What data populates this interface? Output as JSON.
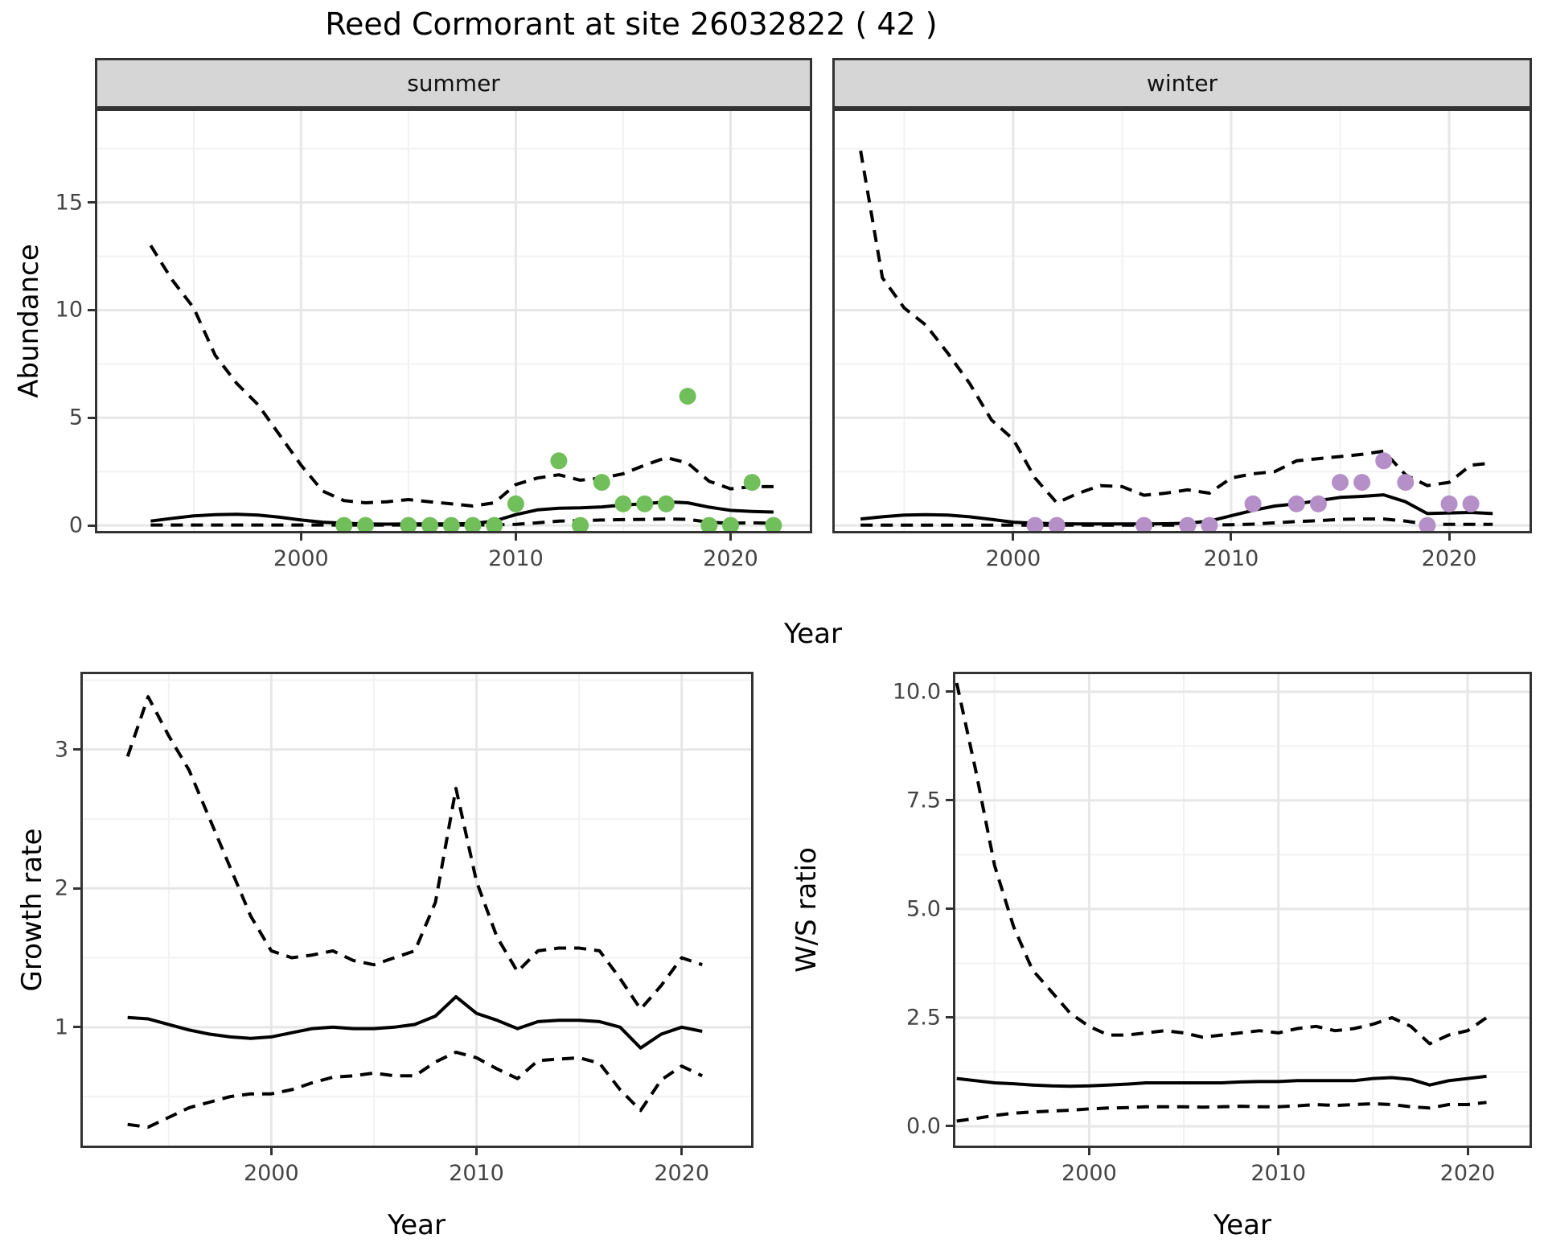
{
  "page_title": "Reed Cormorant at site 26032822 ( 42 )",
  "facets": [
    "summer",
    "winter"
  ],
  "axis_labels": {
    "top_y": "Abundance",
    "top_x": "Year",
    "bottom_left_y": "Growth rate",
    "bottom_left_x": "Year",
    "bottom_right_y": "W/S ratio",
    "bottom_right_x": "Year"
  },
  "colors": {
    "summer_points": "#71bf5b",
    "winter_points": "#b58fc7",
    "line": "#000000",
    "strip_bg": "#d6d6d6",
    "grid_major": "#e7e7e7",
    "grid_minor": "#f2f2f2",
    "panel_border": "#333333",
    "tick_text": "#444444"
  },
  "chart_data": [
    {
      "id": "abundance-summer",
      "type": "line",
      "facet": "summer",
      "xlabel": "Year",
      "ylabel": "Abundance",
      "xlim": [
        1990.4,
        2023.8
      ],
      "ylim": [
        -0.37,
        19.36
      ],
      "xticks": {
        "values": [
          2000,
          2010,
          2020
        ],
        "labels": [
          "2000",
          "2010",
          "2020"
        ]
      },
      "yticks": {
        "values": [
          0,
          5,
          10,
          15
        ],
        "labels": [
          "0",
          "5",
          "10",
          "15"
        ]
      },
      "x": [
        1993,
        1994,
        1995,
        1996,
        1997,
        1998,
        1999,
        2000,
        2001,
        2002,
        2003,
        2004,
        2005,
        2006,
        2007,
        2008,
        2009,
        2010,
        2011,
        2012,
        2013,
        2014,
        2015,
        2016,
        2017,
        2018,
        2019,
        2020,
        2021,
        2022
      ],
      "series": [
        {
          "name": "upper-ci",
          "style": "dashed",
          "values": [
            13.0,
            11.4,
            10.1,
            7.9,
            6.6,
            5.6,
            4.2,
            2.8,
            1.6,
            1.15,
            1.05,
            1.1,
            1.2,
            1.1,
            1.0,
            0.9,
            1.05,
            1.9,
            2.2,
            2.35,
            2.1,
            2.2,
            2.4,
            2.8,
            3.15,
            2.9,
            2.05,
            1.7,
            1.8,
            1.8
          ]
        },
        {
          "name": "fitted-median",
          "style": "solid",
          "values": [
            0.2,
            0.33,
            0.44,
            0.5,
            0.52,
            0.48,
            0.38,
            0.25,
            0.15,
            0.1,
            0.07,
            0.06,
            0.07,
            0.07,
            0.07,
            0.09,
            0.2,
            0.5,
            0.72,
            0.8,
            0.82,
            0.86,
            0.95,
            1.0,
            1.1,
            1.05,
            0.85,
            0.7,
            0.65,
            0.62
          ]
        },
        {
          "name": "lower-ci",
          "style": "dashed",
          "values": [
            0.02,
            0.02,
            0.02,
            0.02,
            0.02,
            0.02,
            0.02,
            0.02,
            0.02,
            0.02,
            0.02,
            0.02,
            0.02,
            0.02,
            0.02,
            0.02,
            0.03,
            0.05,
            0.12,
            0.2,
            0.22,
            0.25,
            0.27,
            0.28,
            0.3,
            0.28,
            0.15,
            0.1,
            0.12,
            0.1
          ]
        }
      ],
      "points": {
        "label": "observed-counts-summer",
        "color_key": "summer_points",
        "data": [
          [
            2002,
            0
          ],
          [
            2003,
            0
          ],
          [
            2005,
            0
          ],
          [
            2006,
            0
          ],
          [
            2007,
            0
          ],
          [
            2008,
            0
          ],
          [
            2009,
            0
          ],
          [
            2010,
            1
          ],
          [
            2012,
            3
          ],
          [
            2013,
            0
          ],
          [
            2014,
            2
          ],
          [
            2015,
            1
          ],
          [
            2016,
            1
          ],
          [
            2017,
            1
          ],
          [
            2018,
            6
          ],
          [
            2019,
            0
          ],
          [
            2020,
            0
          ],
          [
            2021,
            2
          ],
          [
            2022,
            0
          ]
        ]
      }
    },
    {
      "id": "abundance-winter",
      "type": "line",
      "facet": "winter",
      "xlabel": "Year",
      "ylabel": "Abundance",
      "xlim": [
        1991.7,
        2023.8
      ],
      "ylim": [
        -0.37,
        19.36
      ],
      "xticks": {
        "values": [
          2000,
          2010,
          2020
        ],
        "labels": [
          "2000",
          "2010",
          "2020"
        ]
      },
      "yticks": {
        "values": [
          0,
          5,
          10,
          15
        ],
        "labels": [
          "0",
          "5",
          "10",
          "15"
        ]
      },
      "x": [
        1993,
        1994,
        1995,
        1996,
        1997,
        1998,
        1999,
        2000,
        2001,
        2002,
        2003,
        2004,
        2005,
        2006,
        2007,
        2008,
        2009,
        2010,
        2011,
        2012,
        2013,
        2014,
        2015,
        2016,
        2017,
        2018,
        2019,
        2020,
        2021,
        2022
      ],
      "series": [
        {
          "name": "upper-ci",
          "style": "dashed",
          "values": [
            17.4,
            11.5,
            10.1,
            9.3,
            8.0,
            6.6,
            4.9,
            4.0,
            2.2,
            1.05,
            1.5,
            1.85,
            1.8,
            1.4,
            1.5,
            1.65,
            1.5,
            2.2,
            2.4,
            2.5,
            3.0,
            3.1,
            3.2,
            3.3,
            3.45,
            2.35,
            1.85,
            2.0,
            2.8,
            2.9
          ]
        },
        {
          "name": "fitted-median",
          "style": "solid",
          "values": [
            0.3,
            0.4,
            0.48,
            0.5,
            0.48,
            0.4,
            0.28,
            0.15,
            0.1,
            0.08,
            0.07,
            0.07,
            0.07,
            0.07,
            0.08,
            0.1,
            0.2,
            0.45,
            0.7,
            0.9,
            1.0,
            1.15,
            1.3,
            1.35,
            1.42,
            1.1,
            0.55,
            0.58,
            0.6,
            0.55
          ]
        },
        {
          "name": "lower-ci",
          "style": "dashed",
          "values": [
            0.01,
            0.01,
            0.01,
            0.01,
            0.01,
            0.01,
            0.01,
            0.01,
            0.01,
            0.01,
            0.01,
            0.01,
            0.01,
            0.01,
            0.01,
            0.01,
            0.02,
            0.03,
            0.06,
            0.12,
            0.18,
            0.22,
            0.28,
            0.3,
            0.3,
            0.2,
            0.05,
            0.05,
            0.05,
            0.05
          ]
        }
      ],
      "points": {
        "label": "observed-counts-winter",
        "color_key": "winter_points",
        "data": [
          [
            2001,
            0
          ],
          [
            2002,
            0
          ],
          [
            2006,
            0
          ],
          [
            2008,
            0
          ],
          [
            2009,
            0
          ],
          [
            2011,
            1
          ],
          [
            2013,
            1
          ],
          [
            2014,
            1
          ],
          [
            2015,
            2
          ],
          [
            2016,
            2
          ],
          [
            2017,
            3
          ],
          [
            2018,
            2
          ],
          [
            2019,
            0
          ],
          [
            2020,
            1
          ],
          [
            2021,
            1
          ]
        ]
      }
    },
    {
      "id": "growth-rate",
      "type": "line",
      "facet": null,
      "xlabel": "Year",
      "ylabel": "Growth rate",
      "xlim": [
        1990.7,
        2023.5
      ],
      "ylim": [
        0.13,
        3.56
      ],
      "xticks": {
        "values": [
          2000,
          2010,
          2020
        ],
        "labels": [
          "2000",
          "2010",
          "2020"
        ]
      },
      "yticks": {
        "values": [
          1,
          2,
          3
        ],
        "labels": [
          "1",
          "2",
          "3"
        ]
      },
      "x": [
        1993,
        1994,
        1995,
        1996,
        1997,
        1998,
        1999,
        2000,
        2001,
        2002,
        2003,
        2004,
        2005,
        2006,
        2007,
        2008,
        2009,
        2010,
        2011,
        2012,
        2013,
        2014,
        2015,
        2016,
        2017,
        2018,
        2019,
        2020,
        2021
      ],
      "series": [
        {
          "name": "upper-ci",
          "style": "dashed",
          "values": [
            2.95,
            3.38,
            3.1,
            2.85,
            2.5,
            2.15,
            1.8,
            1.55,
            1.5,
            1.52,
            1.55,
            1.48,
            1.45,
            1.5,
            1.55,
            1.9,
            2.72,
            2.05,
            1.65,
            1.4,
            1.55,
            1.57,
            1.57,
            1.55,
            1.35,
            1.13,
            1.3,
            1.5,
            1.45
          ]
        },
        {
          "name": "fitted-median",
          "style": "solid",
          "values": [
            1.07,
            1.06,
            1.02,
            0.98,
            0.95,
            0.93,
            0.92,
            0.93,
            0.96,
            0.99,
            1.0,
            0.99,
            0.99,
            1.0,
            1.02,
            1.08,
            1.22,
            1.1,
            1.05,
            0.99,
            1.04,
            1.05,
            1.05,
            1.04,
            1.0,
            0.85,
            0.95,
            1.0,
            0.97
          ]
        },
        {
          "name": "lower-ci",
          "style": "dashed",
          "values": [
            0.3,
            0.28,
            0.35,
            0.42,
            0.46,
            0.5,
            0.52,
            0.52,
            0.55,
            0.6,
            0.64,
            0.65,
            0.67,
            0.65,
            0.65,
            0.75,
            0.82,
            0.78,
            0.7,
            0.63,
            0.76,
            0.77,
            0.78,
            0.74,
            0.55,
            0.4,
            0.62,
            0.72,
            0.65
          ]
        }
      ],
      "points": null
    },
    {
      "id": "ws-ratio",
      "type": "line",
      "facet": null,
      "xlabel": "Year",
      "ylabel": "W/S ratio",
      "xlim": [
        1992.8,
        2023.4
      ],
      "ylim": [
        -0.5,
        10.46
      ],
      "xticks": {
        "values": [
          2000,
          2010,
          2020
        ],
        "labels": [
          "2000",
          "2010",
          "2020"
        ]
      },
      "yticks": {
        "values": [
          0,
          2.5,
          5,
          7.5,
          10
        ],
        "labels": [
          "0.0",
          "2.5",
          "5.0",
          "7.5",
          "10.0"
        ]
      },
      "x": [
        1993,
        1994,
        1995,
        1996,
        1997,
        1998,
        1999,
        2000,
        2001,
        2002,
        2003,
        2004,
        2005,
        2006,
        2007,
        2008,
        2009,
        2010,
        2011,
        2012,
        2013,
        2014,
        2015,
        2016,
        2017,
        2018,
        2019,
        2020,
        2021
      ],
      "series": [
        {
          "name": "upper-ci",
          "style": "dashed",
          "values": [
            10.2,
            8.2,
            6.0,
            4.6,
            3.6,
            3.1,
            2.6,
            2.3,
            2.1,
            2.1,
            2.15,
            2.2,
            2.15,
            2.05,
            2.1,
            2.15,
            2.2,
            2.15,
            2.25,
            2.3,
            2.2,
            2.25,
            2.35,
            2.5,
            2.3,
            1.9,
            2.1,
            2.2,
            2.5
          ]
        },
        {
          "name": "fitted-median",
          "style": "solid",
          "values": [
            1.1,
            1.05,
            1.0,
            0.98,
            0.95,
            0.93,
            0.92,
            0.93,
            0.95,
            0.97,
            1.0,
            1.0,
            1.0,
            1.0,
            1.0,
            1.02,
            1.03,
            1.03,
            1.05,
            1.05,
            1.05,
            1.05,
            1.1,
            1.12,
            1.08,
            0.95,
            1.05,
            1.1,
            1.15
          ]
        },
        {
          "name": "lower-ci",
          "style": "dashed",
          "values": [
            0.12,
            0.18,
            0.25,
            0.3,
            0.33,
            0.35,
            0.37,
            0.4,
            0.42,
            0.43,
            0.45,
            0.45,
            0.45,
            0.44,
            0.45,
            0.46,
            0.45,
            0.45,
            0.47,
            0.5,
            0.48,
            0.5,
            0.52,
            0.5,
            0.45,
            0.42,
            0.5,
            0.5,
            0.55
          ]
        }
      ],
      "points": null
    }
  ]
}
